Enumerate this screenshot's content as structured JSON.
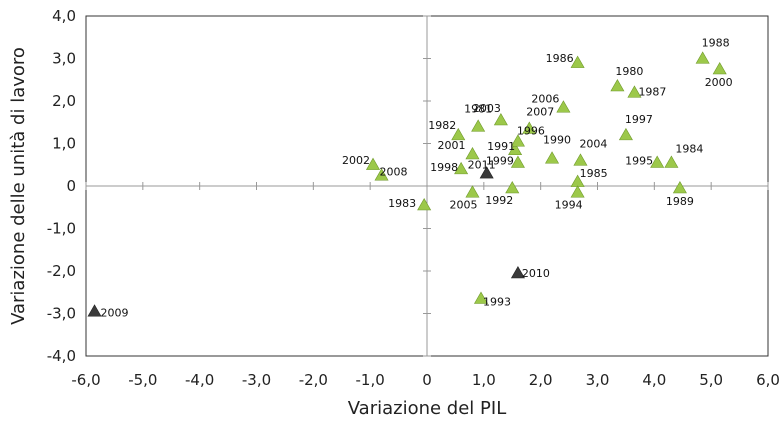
{
  "chart_data": {
    "type": "scatter",
    "xlabel": "Variazione del PIL",
    "ylabel": "Variazione delle unità di lavoro",
    "xlim": [
      -6,
      6
    ],
    "ylim": [
      -4,
      4
    ],
    "x_ticks": [
      -6,
      -5,
      -4,
      -3,
      -2,
      -1,
      0,
      1,
      2,
      3,
      4,
      5,
      6
    ],
    "y_ticks": [
      -4,
      -3,
      -2,
      -1,
      0,
      1,
      2,
      3,
      4
    ],
    "x_tick_labels": [
      "-6,0",
      "-5,0",
      "-4,0",
      "-3,0",
      "-2,0",
      "-1,0",
      "0",
      "1,0",
      "2,0",
      "3,0",
      "4,0",
      "5,0",
      "6,0"
    ],
    "y_tick_labels": [
      "-4,0",
      "-3,0",
      "-2,0",
      "-1,0",
      "0",
      "1,0",
      "2,0",
      "3,0",
      "4,0"
    ],
    "grid": false,
    "colors": {
      "highlight": "#3a3a3a",
      "normal": "#9cc84a",
      "marker_edge": "#6f9a2a"
    },
    "points": [
      {
        "label": "1981",
        "x": 0.9,
        "y": 1.4,
        "color": "normal"
      },
      {
        "label": "1982",
        "x": 0.55,
        "y": 1.2,
        "color": "normal"
      },
      {
        "label": "1983",
        "x": -0.05,
        "y": -0.45,
        "color": "normal"
      },
      {
        "label": "1984",
        "x": 4.3,
        "y": 0.55,
        "color": "normal"
      },
      {
        "label": "1985",
        "x": 2.65,
        "y": 0.1,
        "color": "normal"
      },
      {
        "label": "1986",
        "x": 2.65,
        "y": 2.9,
        "color": "normal"
      },
      {
        "label": "1987",
        "x": 3.65,
        "y": 2.2,
        "color": "normal"
      },
      {
        "label": "1988",
        "x": 4.85,
        "y": 3.0,
        "color": "normal"
      },
      {
        "label": "1989",
        "x": 4.45,
        "y": -0.05,
        "color": "normal"
      },
      {
        "label": "1990",
        "x": 2.2,
        "y": 0.65,
        "color": "normal"
      },
      {
        "label": "1991",
        "x": 1.55,
        "y": 0.85,
        "color": "normal"
      },
      {
        "label": "1992",
        "x": 1.5,
        "y": -0.05,
        "color": "normal"
      },
      {
        "label": "1993",
        "x": 0.95,
        "y": -2.65,
        "color": "normal"
      },
      {
        "label": "1994",
        "x": 2.65,
        "y": -0.15,
        "color": "normal"
      },
      {
        "label": "1995",
        "x": 4.05,
        "y": 0.55,
        "color": "normal"
      },
      {
        "label": "1996",
        "x": 1.6,
        "y": 1.05,
        "color": "normal"
      },
      {
        "label": "1997",
        "x": 3.5,
        "y": 1.2,
        "color": "normal"
      },
      {
        "label": "1998",
        "x": 0.6,
        "y": 0.4,
        "color": "normal"
      },
      {
        "label": "1999",
        "x": 1.6,
        "y": 0.55,
        "color": "normal"
      },
      {
        "label": "2000",
        "x": 5.15,
        "y": 2.75,
        "color": "normal"
      },
      {
        "label": "2001",
        "x": 0.8,
        "y": 0.75,
        "color": "normal"
      },
      {
        "label": "2002",
        "x": -0.95,
        "y": 0.5,
        "color": "normal"
      },
      {
        "label": "2003",
        "x": 1.3,
        "y": 1.55,
        "color": "normal"
      },
      {
        "label": "2004",
        "x": 2.7,
        "y": 0.6,
        "color": "normal"
      },
      {
        "label": "2005",
        "x": 0.8,
        "y": -0.15,
        "color": "normal"
      },
      {
        "label": "2006",
        "x": 2.4,
        "y": 1.85,
        "color": "normal"
      },
      {
        "label": "2007",
        "x": 1.8,
        "y": 1.35,
        "color": "normal"
      },
      {
        "label": "2008",
        "x": -0.8,
        "y": 0.25,
        "color": "normal"
      },
      {
        "label": "2009",
        "x": -5.85,
        "y": -2.95,
        "color": "highlight"
      },
      {
        "label": "2010",
        "x": 1.6,
        "y": -2.05,
        "color": "highlight"
      },
      {
        "label": "2011",
        "x": 1.05,
        "y": 0.3,
        "color": "highlight"
      },
      {
        "label": "1980",
        "x": 3.35,
        "y": 2.35,
        "color": "normal"
      }
    ]
  }
}
